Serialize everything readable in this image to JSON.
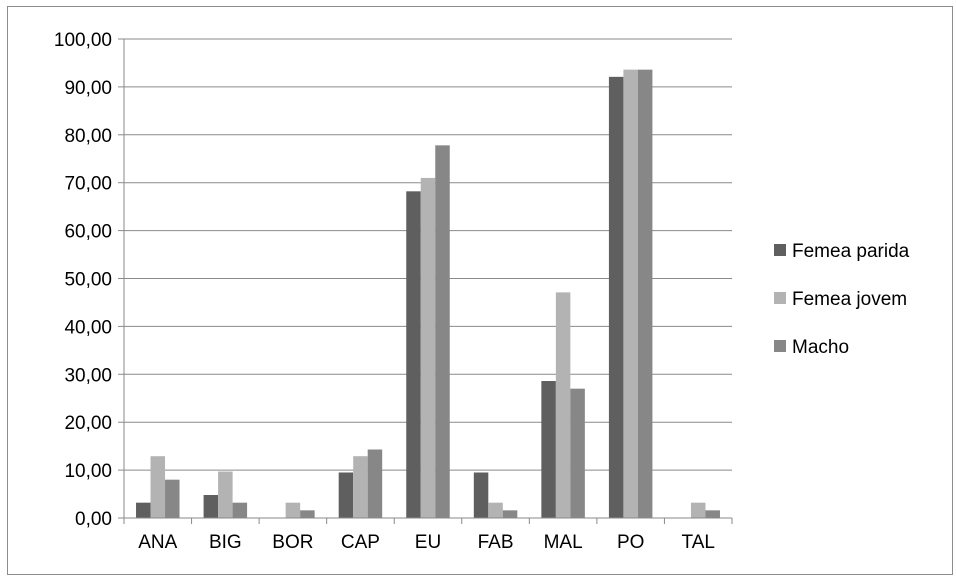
{
  "chart_data": {
    "type": "bar",
    "title": "",
    "xlabel": "",
    "ylabel": "",
    "ylim": [
      0,
      100
    ],
    "yticks": [
      "0,00",
      "10,00",
      "20,00",
      "30,00",
      "40,00",
      "50,00",
      "60,00",
      "70,00",
      "80,00",
      "90,00",
      "100,00"
    ],
    "categories": [
      "ANA",
      "BIG",
      "BOR",
      "CAP",
      "EU",
      "FAB",
      "MAL",
      "PO",
      "TAL"
    ],
    "series": [
      {
        "name": "Femea parida",
        "color": "#5f5f5f",
        "values": [
          3.2,
          4.8,
          0,
          9.5,
          68.2,
          9.5,
          28.6,
          92.1,
          0
        ]
      },
      {
        "name": "Femea jovem",
        "color": "#b3b3b3",
        "values": [
          12.9,
          9.7,
          3.2,
          12.9,
          71.0,
          3.2,
          47.1,
          93.6,
          3.2
        ]
      },
      {
        "name": "Macho",
        "color": "#878787",
        "values": [
          8.0,
          3.2,
          1.6,
          14.3,
          77.8,
          1.6,
          27.0,
          93.6,
          1.6
        ]
      }
    ],
    "grid": true,
    "legend": "right"
  }
}
